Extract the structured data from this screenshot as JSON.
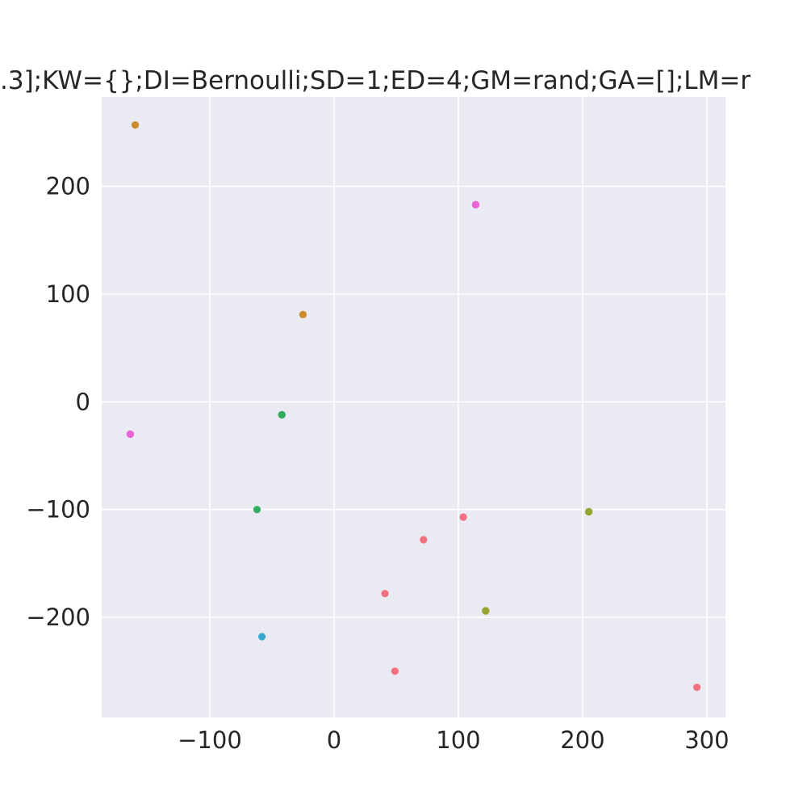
{
  "chart_data": {
    "type": "scatter",
    "title": ".3];KW={};DI=Bernoulli;SD=1;ED=4;GM=rand;GA=[];LM=r",
    "xlabel": "",
    "ylabel": "",
    "xlim": [
      -187,
      315
    ],
    "ylim": [
      -293,
      283
    ],
    "xticks": [
      -100,
      0,
      100,
      200,
      300
    ],
    "yticks": [
      -200,
      -100,
      0,
      100,
      200
    ],
    "xtick_labels": [
      "−100",
      "0",
      "100",
      "200",
      "300"
    ],
    "ytick_labels": [
      "−200",
      "−100",
      "0",
      "100",
      "200"
    ],
    "grid": true,
    "background": "#eaeaf2",
    "grid_color": "#ffffff",
    "points": [
      {
        "x": -160,
        "y": 257,
        "color": "#ce8a2d"
      },
      {
        "x": -25,
        "y": 81,
        "color": "#ce8a2d"
      },
      {
        "x": 114,
        "y": 183,
        "color": "#e863d7"
      },
      {
        "x": 114,
        "y": 183,
        "color": "#e863d7"
      },
      {
        "x": 114,
        "y": 183,
        "color": "#e863d7"
      },
      {
        "x": -164,
        "y": -30,
        "color": "#e863d7"
      },
      {
        "x": -164,
        "y": -30,
        "color": "#e863d7"
      },
      {
        "x": -164,
        "y": -30,
        "color": "#e863d7"
      },
      {
        "x": -42,
        "y": -12,
        "color": "#33ac61"
      },
      {
        "x": -42,
        "y": -12,
        "color": "#33ac61"
      },
      {
        "x": -42,
        "y": -12,
        "color": "#33ac61"
      },
      {
        "x": -62,
        "y": -100,
        "color": "#33ac61"
      },
      {
        "x": 205,
        "y": -102,
        "color": "#96a431"
      },
      {
        "x": 205,
        "y": -102,
        "color": "#96a431"
      },
      {
        "x": 205,
        "y": -102,
        "color": "#96a431"
      },
      {
        "x": 122,
        "y": -194,
        "color": "#96a431"
      },
      {
        "x": 122,
        "y": -194,
        "color": "#96a431"
      },
      {
        "x": 122,
        "y": -194,
        "color": "#96a431"
      },
      {
        "x": 104,
        "y": -107,
        "color": "#f2707f"
      },
      {
        "x": 72,
        "y": -128,
        "color": "#f2707f"
      },
      {
        "x": 41,
        "y": -178,
        "color": "#f2707f"
      },
      {
        "x": 49,
        "y": -250,
        "color": "#f2707f"
      },
      {
        "x": 292,
        "y": -265,
        "color": "#f2707f"
      },
      {
        "x": -58,
        "y": -218,
        "color": "#39a7d0"
      }
    ]
  }
}
